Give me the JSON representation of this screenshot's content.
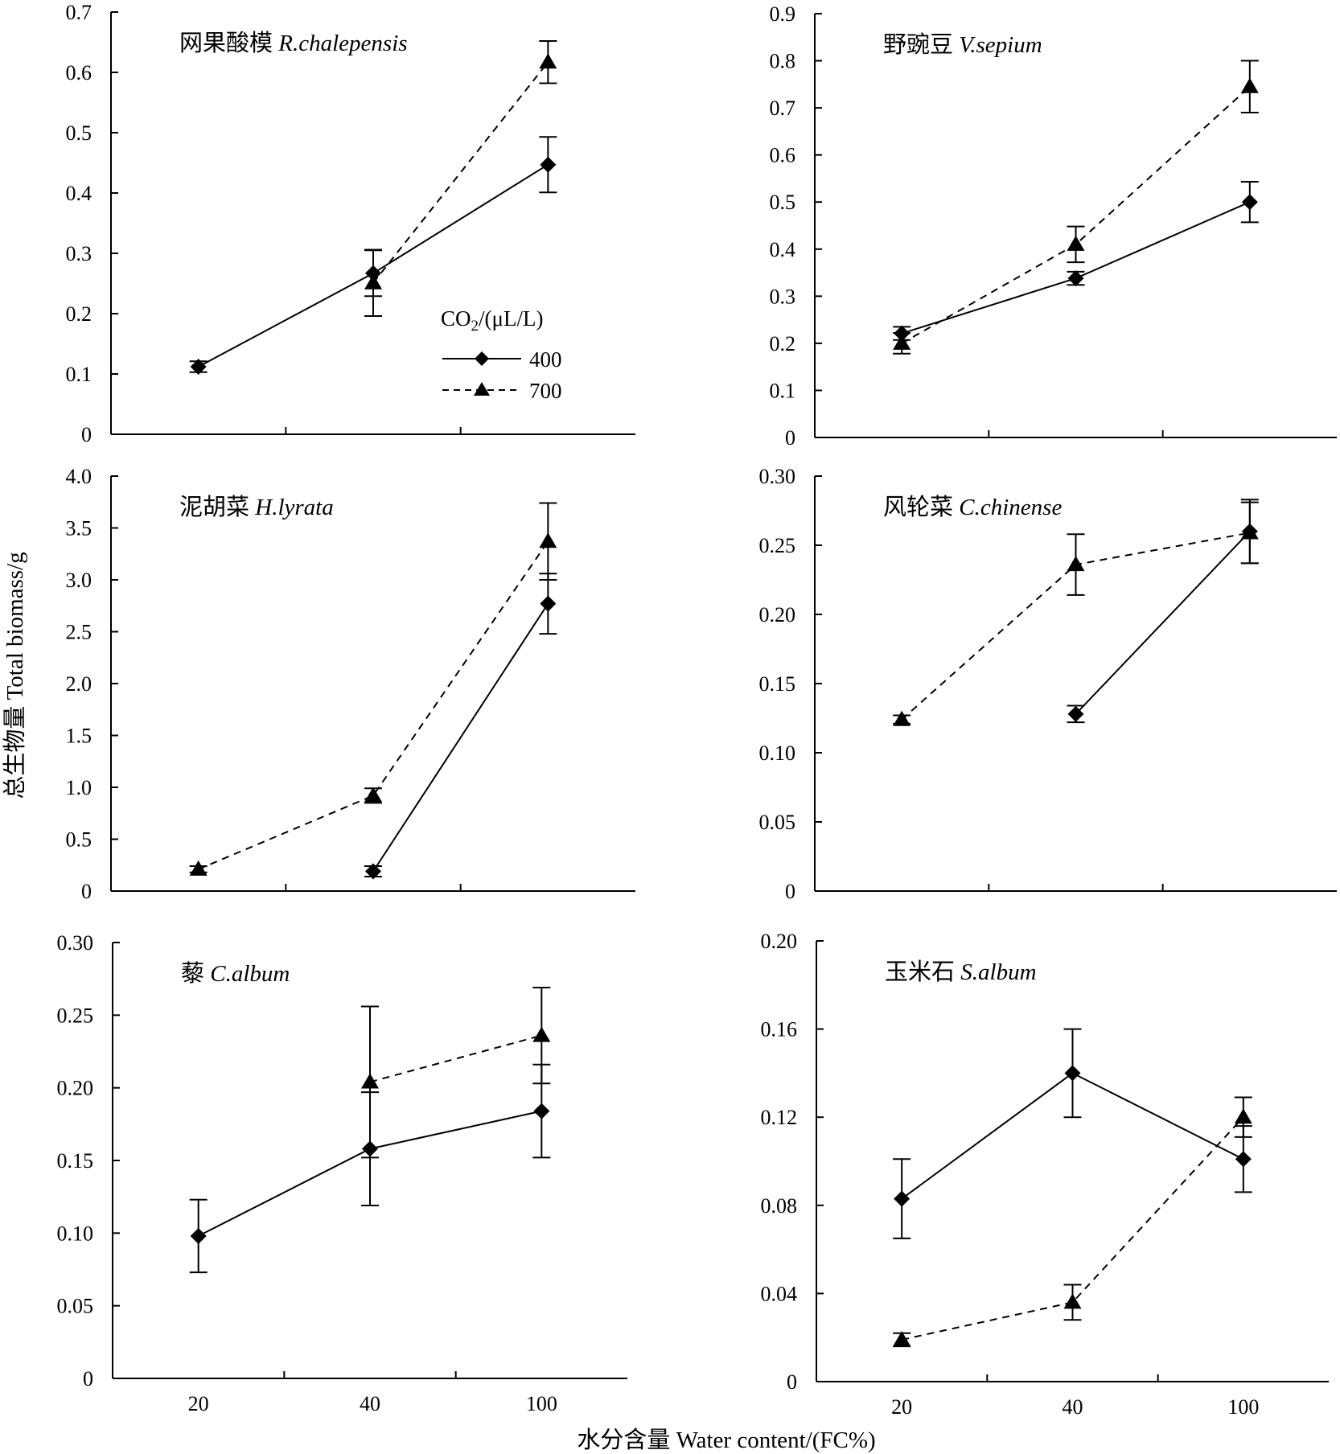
{
  "figure": {
    "ylabel": "总生物量 Total biomass/g",
    "xlabel": "水分含量 Water content/(FC%)",
    "x_categories": [
      "20",
      "40",
      "100"
    ],
    "legend": {
      "title_main": "CO",
      "title_sub": "2",
      "title_unit": "/(μL/L)",
      "entries": [
        {
          "label": "400",
          "marker": "diamond",
          "line": "solid"
        },
        {
          "label": "700",
          "marker": "triangle",
          "line": "dashed"
        }
      ]
    }
  },
  "chart_data": [
    {
      "type": "line",
      "title_cn": "网果酸模",
      "title_latin": "R.chalepensis",
      "categories": [
        "20",
        "40",
        "100"
      ],
      "ylim": [
        0,
        0.7
      ],
      "yticks": [
        "0",
        "0.1",
        "0.2",
        "0.3",
        "0.4",
        "0.5",
        "0.6",
        "0.7"
      ],
      "series": [
        {
          "name": "400",
          "values": [
            0.112,
            0.267,
            0.447
          ],
          "err": [
            0.009,
            0.038,
            0.046
          ]
        },
        {
          "name": "700",
          "values": [
            null,
            0.251,
            0.617
          ],
          "err": [
            null,
            0.055,
            0.035
          ]
        }
      ]
    },
    {
      "type": "line",
      "title_cn": "野豌豆",
      "title_latin": "V.sepium",
      "categories": [
        "20",
        "40",
        "100"
      ],
      "ylim": [
        0,
        0.9
      ],
      "yticks": [
        "0",
        "0.1",
        "0.2",
        "0.3",
        "0.4",
        "0.5",
        "0.6",
        "0.7",
        "0.8",
        "0.9"
      ],
      "series": [
        {
          "name": "400",
          "values": [
            0.221,
            0.338,
            0.5
          ],
          "err": [
            0.014,
            0.014,
            0.043
          ]
        },
        {
          "name": "700",
          "values": [
            0.2,
            0.41,
            0.745
          ],
          "err": [
            0.022,
            0.038,
            0.055
          ]
        }
      ]
    },
    {
      "type": "line",
      "title_cn": "泥胡菜",
      "title_latin": "H.lyrata",
      "categories": [
        "20",
        "40",
        "100"
      ],
      "ylim": [
        0,
        4.0
      ],
      "yticks": [
        "0",
        "0.5",
        "1.0",
        "1.5",
        "2.0",
        "2.5",
        "3.0",
        "3.5",
        "4.0"
      ],
      "series": [
        {
          "name": "400",
          "values": [
            null,
            0.19,
            2.77
          ],
          "err": [
            null,
            0.05,
            0.29
          ]
        },
        {
          "name": "700",
          "values": [
            0.21,
            0.92,
            3.37
          ],
          "err": [
            0.03,
            0.07,
            0.37
          ]
        }
      ]
    },
    {
      "type": "line",
      "title_cn": "风轮菜",
      "title_latin": "C.chinense",
      "categories": [
        "20",
        "40",
        "100"
      ],
      "ylim": [
        0,
        0.3
      ],
      "yticks": [
        "0",
        "0.05",
        "0.10",
        "0.15",
        "0.20",
        "0.25",
        "0.30"
      ],
      "series": [
        {
          "name": "400",
          "values": [
            null,
            0.128,
            0.26
          ],
          "err": [
            null,
            0.006,
            0.023
          ]
        },
        {
          "name": "700",
          "values": [
            0.124,
            0.236,
            0.259
          ],
          "err": [
            0.003,
            0.022,
            0.022
          ]
        }
      ]
    },
    {
      "type": "line",
      "title_cn": "藜",
      "title_latin": "C.album",
      "categories": [
        "20",
        "40",
        "100"
      ],
      "ylim": [
        0,
        0.3
      ],
      "yticks": [
        "0",
        "0.05",
        "0.10",
        "0.15",
        "0.20",
        "0.25",
        "0.30"
      ],
      "series": [
        {
          "name": "400",
          "values": [
            0.098,
            0.158,
            0.184
          ],
          "err": [
            0.025,
            0.039,
            0.032
          ]
        },
        {
          "name": "700",
          "values": [
            null,
            0.204,
            0.236
          ],
          "err": [
            null,
            0.052,
            0.033
          ]
        }
      ]
    },
    {
      "type": "line",
      "title_cn": "玉米石",
      "title_latin": "S.album",
      "categories": [
        "20",
        "40",
        "100"
      ],
      "ylim": [
        0,
        0.2
      ],
      "yticks": [
        "0",
        "0.04",
        "0.08",
        "0.12",
        "0.16",
        "0.20"
      ],
      "series": [
        {
          "name": "400",
          "values": [
            0.083,
            0.14,
            0.101
          ],
          "err": [
            0.018,
            0.02,
            0.015
          ]
        },
        {
          "name": "700",
          "values": [
            0.019,
            0.036,
            0.12
          ],
          "err": [
            0.003,
            0.008,
            0.009
          ]
        }
      ]
    }
  ]
}
